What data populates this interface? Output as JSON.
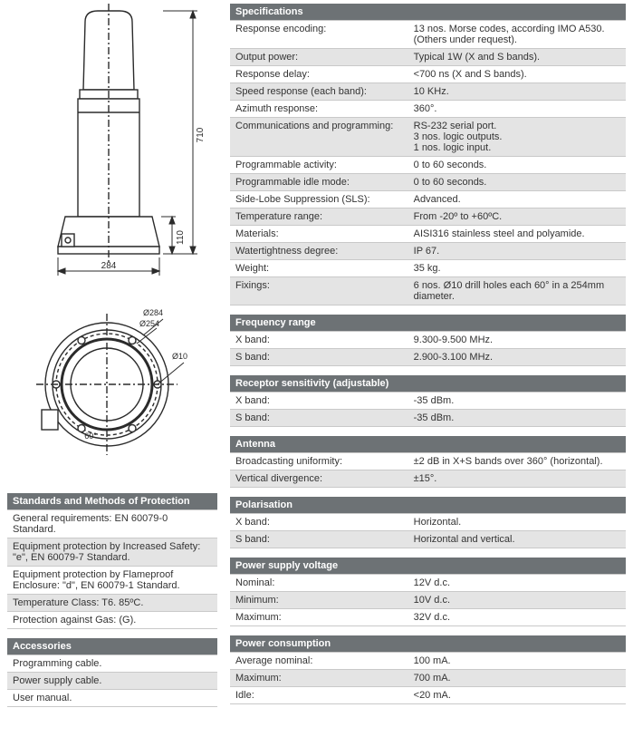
{
  "diagrams": {
    "top": {
      "height": "710",
      "base_h": "110",
      "width": "284"
    },
    "bot": {
      "d_outer": "284",
      "d_bolt": "254",
      "d_hole": "10",
      "angle": "60°"
    }
  },
  "standards": {
    "title": "Standards and Methods of Protection",
    "rows": [
      "General requirements: EN 60079-0 Standard.",
      "Equipment protection by Increased Safety: \"e\", EN 60079-7 Standard.",
      "Equipment protection by Flameproof Enclosure: \"d\", EN 60079-1 Standard.",
      "Temperature Class: T6. 85ºC.",
      "Protection against Gas: (G)."
    ]
  },
  "accessories": {
    "title": "Accessories",
    "rows": [
      "Programming cable.",
      "Power supply cable.",
      "User manual."
    ]
  },
  "specs": {
    "title": "Specifications",
    "rows": [
      {
        "k": "Response encoding:",
        "v": "13 nos. Morse codes, according IMO A530. (Others under request)."
      },
      {
        "k": "Output power:",
        "v": "Typical 1W (X and S bands)."
      },
      {
        "k": "Response delay:",
        "v": "<700 ns (X and S bands)."
      },
      {
        "k": "Speed response (each band):",
        "v": "10 KHz."
      },
      {
        "k": "Azimuth response:",
        "v": "360°."
      },
      {
        "k": "Communications and programming:",
        "v": "RS-232 serial port.\n3 nos. logic outputs.\n1 nos. logic input."
      },
      {
        "k": "Programmable activity:",
        "v": "0 to 60 seconds."
      },
      {
        "k": "Programmable idle mode:",
        "v": "0 to 60 seconds."
      },
      {
        "k": "Side-Lobe Suppression (SLS):",
        "v": "Advanced."
      },
      {
        "k": "Temperature range:",
        "v": "From -20º to +60ºC."
      },
      {
        "k": "Materials:",
        "v": "AISI316 stainless steel and polyamide."
      },
      {
        "k": "Watertightness degree:",
        "v": "IP 67."
      },
      {
        "k": "Weight:",
        "v": "35 kg."
      },
      {
        "k": "Fixings:",
        "v": "6 nos. Ø10 drill holes each 60° in a 254mm diameter."
      }
    ]
  },
  "freq": {
    "title": "Frequency range",
    "rows": [
      {
        "k": "X band:",
        "v": "9.300-9.500 MHz."
      },
      {
        "k": "S band:",
        "v": "2.900-3.100 MHz."
      }
    ]
  },
  "sens": {
    "title": "Receptor sensitivity (adjustable)",
    "rows": [
      {
        "k": "X band:",
        "v": "-35 dBm."
      },
      {
        "k": "S band:",
        "v": "-35 dBm."
      }
    ]
  },
  "antenna": {
    "title": "Antenna",
    "rows": [
      {
        "k": "Broadcasting uniformity:",
        "v": "±2 dB in X+S bands over 360° (horizontal)."
      },
      {
        "k": "Vertical divergence:",
        "v": "±15°."
      }
    ]
  },
  "polar": {
    "title": "Polarisation",
    "rows": [
      {
        "k": "X band:",
        "v": "Horizontal."
      },
      {
        "k": "S band:",
        "v": "Horizontal and vertical."
      }
    ]
  },
  "psv": {
    "title": "Power supply voltage",
    "rows": [
      {
        "k": "Nominal:",
        "v": "12V d.c."
      },
      {
        "k": "Minimum:",
        "v": "10V d.c."
      },
      {
        "k": "Maximum:",
        "v": "32V d.c."
      }
    ]
  },
  "pcons": {
    "title": "Power consumption",
    "rows": [
      {
        "k": "Average nominal:",
        "v": "100 mA."
      },
      {
        "k": "Maximum:",
        "v": "700 mA."
      },
      {
        "k": "Idle:",
        "v": "<20 mA."
      }
    ]
  },
  "style": {
    "header_bg": "#6d7275",
    "header_fg": "#ffffff",
    "row_alt_bg": "#e4e4e4",
    "border": "#c9c9c9",
    "stroke": "#2b2b2b",
    "dim_font": 10
  }
}
